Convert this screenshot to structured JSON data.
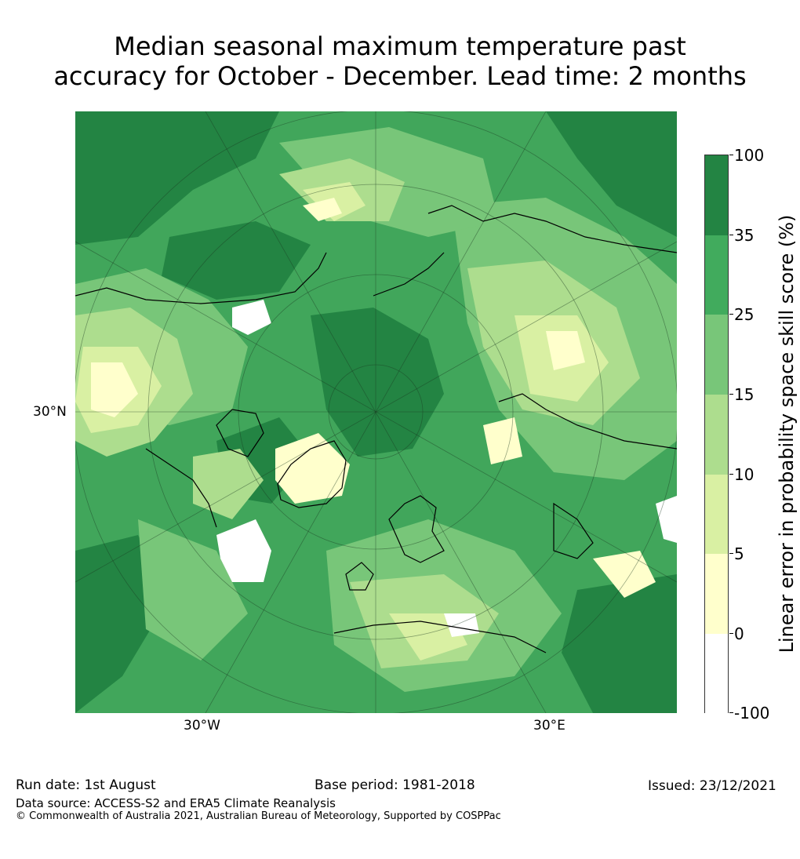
{
  "title": {
    "line1": "Median seasonal maximum temperature past",
    "line2": "accuracy for October - December. Lead time: 2 months"
  },
  "map": {
    "lat_label": "30°N",
    "lon_labels": [
      "30°W",
      "30°E"
    ],
    "colors": {
      "sea": "#41a65b",
      "high": "#238443",
      "mid": "#78c679",
      "low": "#addd8e",
      "lower": "#d9f0a3",
      "lowest": "#ffffcc",
      "none": "#ffffff",
      "coast": "#000000"
    }
  },
  "colorbar": {
    "title": "Linear error in probability space skill score (%)",
    "ticks": [
      "100",
      "35",
      "25",
      "15",
      "10",
      "5",
      "0",
      "-100"
    ],
    "bins": [
      {
        "range": "35-100",
        "color": "#238443"
      },
      {
        "range": "25-35",
        "color": "#41ab5d"
      },
      {
        "range": "15-25",
        "color": "#78c679"
      },
      {
        "range": "10-15",
        "color": "#addd8e"
      },
      {
        "range": "5-10",
        "color": "#d9f0a3"
      },
      {
        "range": "0-5",
        "color": "#ffffcc"
      },
      {
        "range": "-100-0",
        "color": "#ffffff"
      }
    ]
  },
  "footer": {
    "run_date": "Run date: 1st August",
    "base_period": "Base period: 1981-2018",
    "issued": "Issued: 23/12/2021",
    "data_source": "Data source: ACCESS-S2 and ERA5 Climate Reanalysis",
    "copyright": "© Commonwealth of Australia 2021, Australian Bureau of Meteorology, Supported by COSPPac"
  }
}
